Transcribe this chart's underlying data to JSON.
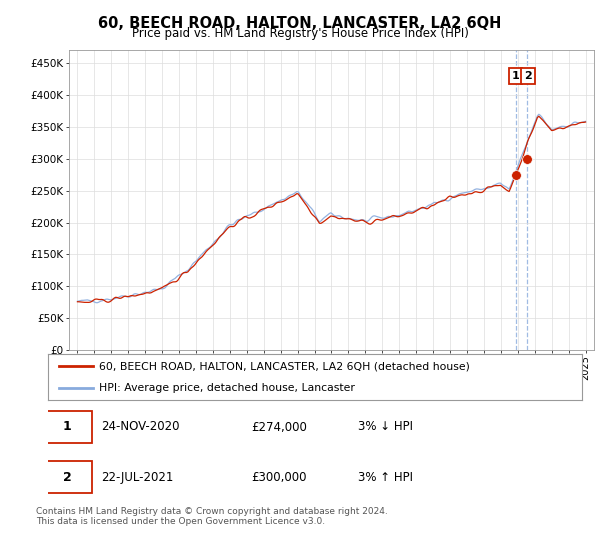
{
  "title": "60, BEECH ROAD, HALTON, LANCASTER, LA2 6QH",
  "subtitle": "Price paid vs. HM Land Registry's House Price Index (HPI)",
  "ylabel_ticks": [
    "£0",
    "£50K",
    "£100K",
    "£150K",
    "£200K",
    "£250K",
    "£300K",
    "£350K",
    "£400K",
    "£450K"
  ],
  "ytick_vals": [
    0,
    50000,
    100000,
    150000,
    200000,
    250000,
    300000,
    350000,
    400000,
    450000
  ],
  "ylim": [
    0,
    470000
  ],
  "xlim_start": 1994.5,
  "xlim_end": 2025.5,
  "line1_label": "60, BEECH ROAD, HALTON, LANCASTER, LA2 6QH (detached house)",
  "line2_label": "HPI: Average price, detached house, Lancaster",
  "line1_color": "#cc2200",
  "line2_color": "#88aadd",
  "annotation_line_color": "#88aadd",
  "point1_x": 2020.9,
  "point1_y": 274000,
  "point2_x": 2021.55,
  "point2_y": 300000,
  "table_rows": [
    {
      "num": "1",
      "date": "24-NOV-2020",
      "price": "£274,000",
      "hpi": "3% ↓ HPI"
    },
    {
      "num": "2",
      "date": "22-JUL-2021",
      "price": "£300,000",
      "hpi": "3% ↑ HPI"
    }
  ],
  "footer": "Contains HM Land Registry data © Crown copyright and database right 2024.\nThis data is licensed under the Open Government Licence v3.0.",
  "background_color": "#ffffff",
  "grid_color": "#dddddd"
}
